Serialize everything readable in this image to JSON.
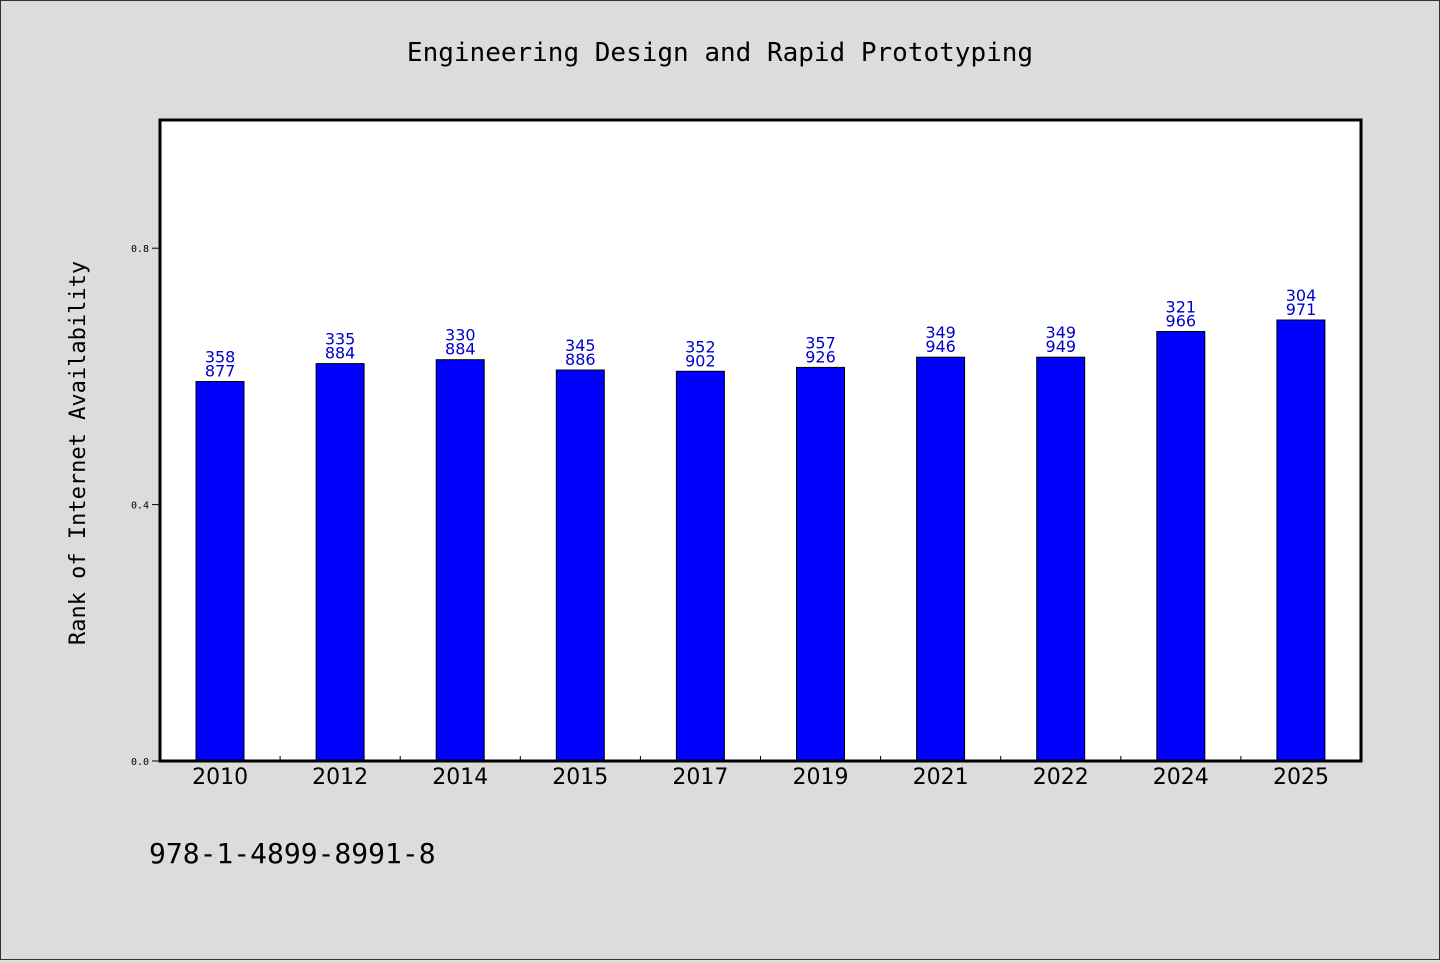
{
  "colors": {
    "background": "#dcdcdc",
    "plot_background": "#ffffff",
    "bar": "#0000ff",
    "value_label": "#0000cc"
  },
  "footer": {
    "isbn": "978-1-4899-8991-8"
  },
  "chart_data": {
    "type": "bar",
    "title": "Engineering Design and Rapid Prototyping",
    "xlabel": "",
    "ylabel": "Rank of Internet Availability",
    "categories": [
      "2010",
      "2012",
      "2014",
      "2015",
      "2017",
      "2019",
      "2021",
      "2022",
      "2024",
      "2025"
    ],
    "series": [
      {
        "values": [
          0.592,
          0.62,
          0.626,
          0.61,
          0.608,
          0.614,
          0.63,
          0.63,
          0.67,
          0.688
        ],
        "labels": [
          "358\n877",
          "335\n884",
          "330\n884",
          "345\n886",
          "352\n902",
          "357\n926",
          "349\n946",
          "349\n949",
          "321\n966",
          "304\n971"
        ]
      }
    ],
    "ylim": [
      0.0,
      1.0
    ],
    "yticks": [
      0.0,
      0.4,
      0.8
    ],
    "ytick_labels": [
      "0.0",
      "0.4",
      "0.8"
    ],
    "grid": false,
    "legend": "none"
  }
}
